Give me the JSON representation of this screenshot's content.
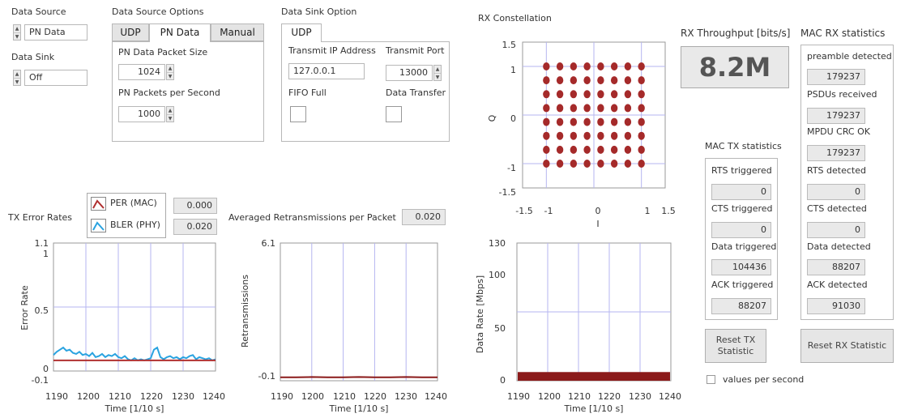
{
  "data_source": {
    "label": "Data Source",
    "value": "PN Data"
  },
  "data_sink": {
    "label": "Data Sink",
    "value": "Off"
  },
  "source_options": {
    "title": "Data Source Options",
    "tabs": [
      "UDP",
      "PN Data",
      "Manual"
    ],
    "packet_size_label": "PN Data Packet Size",
    "packet_size": "1024",
    "pps_label": "PN Packets per Second",
    "pps": "1000"
  },
  "sink_option": {
    "title": "Data Sink Option",
    "tabs": [
      "UDP"
    ],
    "ip_label": "Transmit IP Address",
    "ip": "127.0.0.1",
    "port_label": "Transmit Port",
    "port": "13000",
    "fifo_label": "FIFO Full",
    "transfer_label": "Data Transfer"
  },
  "rx_constellation": {
    "title": "RX Constellation",
    "xlabel": "I",
    "ylabel": "Q"
  },
  "rx_throughput": {
    "label": "RX Throughput [bits/s]",
    "value": "8.2M"
  },
  "mac_tx": {
    "title": "MAC TX statistics",
    "rts_label": "RTS triggered",
    "rts": "0",
    "cts_label": "CTS triggered",
    "cts": "0",
    "data_label": "Data triggered",
    "data": "104436",
    "ack_label": "ACK triggered",
    "ack": "88207"
  },
  "mac_rx": {
    "title": "MAC RX statistics",
    "preamble_label": "preamble detected",
    "preamble": "179237",
    "psdu_label": "PSDUs received",
    "psdu": "179237",
    "crc_label": "MPDU CRC OK",
    "crc": "179237",
    "rts_label": "RTS detected",
    "rts": "0",
    "cts_label": "CTS detected",
    "cts": "0",
    "data_label": "Data detected",
    "data": "88207",
    "ack_label": "ACK detected",
    "ack": "91030"
  },
  "buttons": {
    "reset_tx": "Reset TX Statistic",
    "reset_rx": "Reset RX Statistic"
  },
  "values_per_second": "values per second",
  "tx_error": {
    "title": "TX Error Rates",
    "legend": [
      {
        "name": "PER (MAC)",
        "value": "0.000",
        "color": "#b03030"
      },
      {
        "name": "BLER (PHY)",
        "value": "0.020",
        "color": "#2aa3e0"
      }
    ]
  },
  "retrans": {
    "title": "Averaged Retransmissions per Packet",
    "value": "0.020"
  },
  "chart_data": [
    {
      "type": "scatter",
      "title": "RX Constellation",
      "xlabel": "I",
      "ylabel": "Q",
      "xlim": [
        -1.5,
        1.5
      ],
      "ylim": [
        -1.5,
        1.5
      ],
      "xticks": [
        "-1.5",
        "-1",
        "0",
        "1",
        "1.5"
      ],
      "yticks": [
        "1.5",
        "1",
        "0",
        "-1",
        "-1.5"
      ],
      "grid": "8x8 constellation points at I,Q in {-1,-0.714,-0.429,-0.143,0.143,0.429,0.714,1}",
      "color": "#a52a2a"
    },
    {
      "type": "line",
      "xlabel": "Time [1/10 s]",
      "ylabel": "Error Rate",
      "xlim": [
        1190,
        1240
      ],
      "ylim": [
        -0.1,
        1.1
      ],
      "xticks": [
        "1190",
        "1200",
        "1210",
        "1220",
        "1230",
        "1240"
      ],
      "yticks": [
        "1.1",
        "1",
        "0.5",
        "0",
        "-0.1"
      ],
      "series": [
        {
          "name": "BLER (PHY)",
          "color": "#2aa3e0",
          "x": [
            1190,
            1191,
            1192,
            1193,
            1194,
            1195,
            1196,
            1197,
            1198,
            1199,
            1200,
            1201,
            1202,
            1203,
            1204,
            1205,
            1206,
            1207,
            1208,
            1209,
            1210,
            1211,
            1212,
            1213,
            1214,
            1215,
            1216,
            1217,
            1218,
            1219,
            1220,
            1221,
            1222,
            1223,
            1224,
            1225,
            1226,
            1227,
            1228,
            1229,
            1230,
            1231,
            1232,
            1233,
            1234,
            1235,
            1236,
            1237,
            1238,
            1239,
            1240
          ],
          "y": [
            0.05,
            0.08,
            0.1,
            0.12,
            0.09,
            0.1,
            0.07,
            0.06,
            0.08,
            0.05,
            0.06,
            0.04,
            0.07,
            0.03,
            0.04,
            0.06,
            0.03,
            0.05,
            0.04,
            0.06,
            0.03,
            0.02,
            0.04,
            0.01,
            0.0,
            0.02,
            0.0,
            0.01,
            0.0,
            0.01,
            0.02,
            0.1,
            0.12,
            0.03,
            0.01,
            0.03,
            0.04,
            0.02,
            0.03,
            0.01,
            0.03,
            0.02,
            0.04,
            0.05,
            0.01,
            0.03,
            0.02,
            0.01,
            0.02,
            0.0,
            0.01
          ]
        },
        {
          "name": "PER (MAC)",
          "color": "#b03030",
          "x": [
            1190,
            1240
          ],
          "y": [
            0,
            0
          ]
        }
      ]
    },
    {
      "type": "line",
      "xlabel": "Time [1/10 s]",
      "ylabel": "Retransmissions",
      "xlim": [
        1190,
        1240
      ],
      "ylim": [
        -0.1,
        6.1
      ],
      "xticks": [
        "1190",
        "1200",
        "1210",
        "1220",
        "1230",
        "1240"
      ],
      "yticks": [
        "6.1",
        "0",
        "-0.1"
      ],
      "series": [
        {
          "name": "Retransmissions",
          "color": "#8b1a1a",
          "x": [
            1190,
            1195,
            1200,
            1205,
            1210,
            1215,
            1220,
            1225,
            1230,
            1235,
            1240
          ],
          "y": [
            0.02,
            0.02,
            0.03,
            0.02,
            0.02,
            0.03,
            0.02,
            0.02,
            0.03,
            0.02,
            0.02
          ]
        }
      ]
    },
    {
      "type": "area",
      "xlabel": "Time [1/10 s]",
      "ylabel": "Data Rate [Mbps]",
      "xlim": [
        1190,
        1240
      ],
      "ylim": [
        0,
        130
      ],
      "xticks": [
        "1190",
        "1200",
        "1210",
        "1220",
        "1230",
        "1240"
      ],
      "yticks": [
        "130",
        "100",
        "50",
        "0"
      ],
      "series": [
        {
          "name": "Data Rate",
          "color": "#8b1a1a",
          "x": [
            1190,
            1240
          ],
          "y": [
            8.2,
            8.2
          ]
        }
      ]
    }
  ]
}
